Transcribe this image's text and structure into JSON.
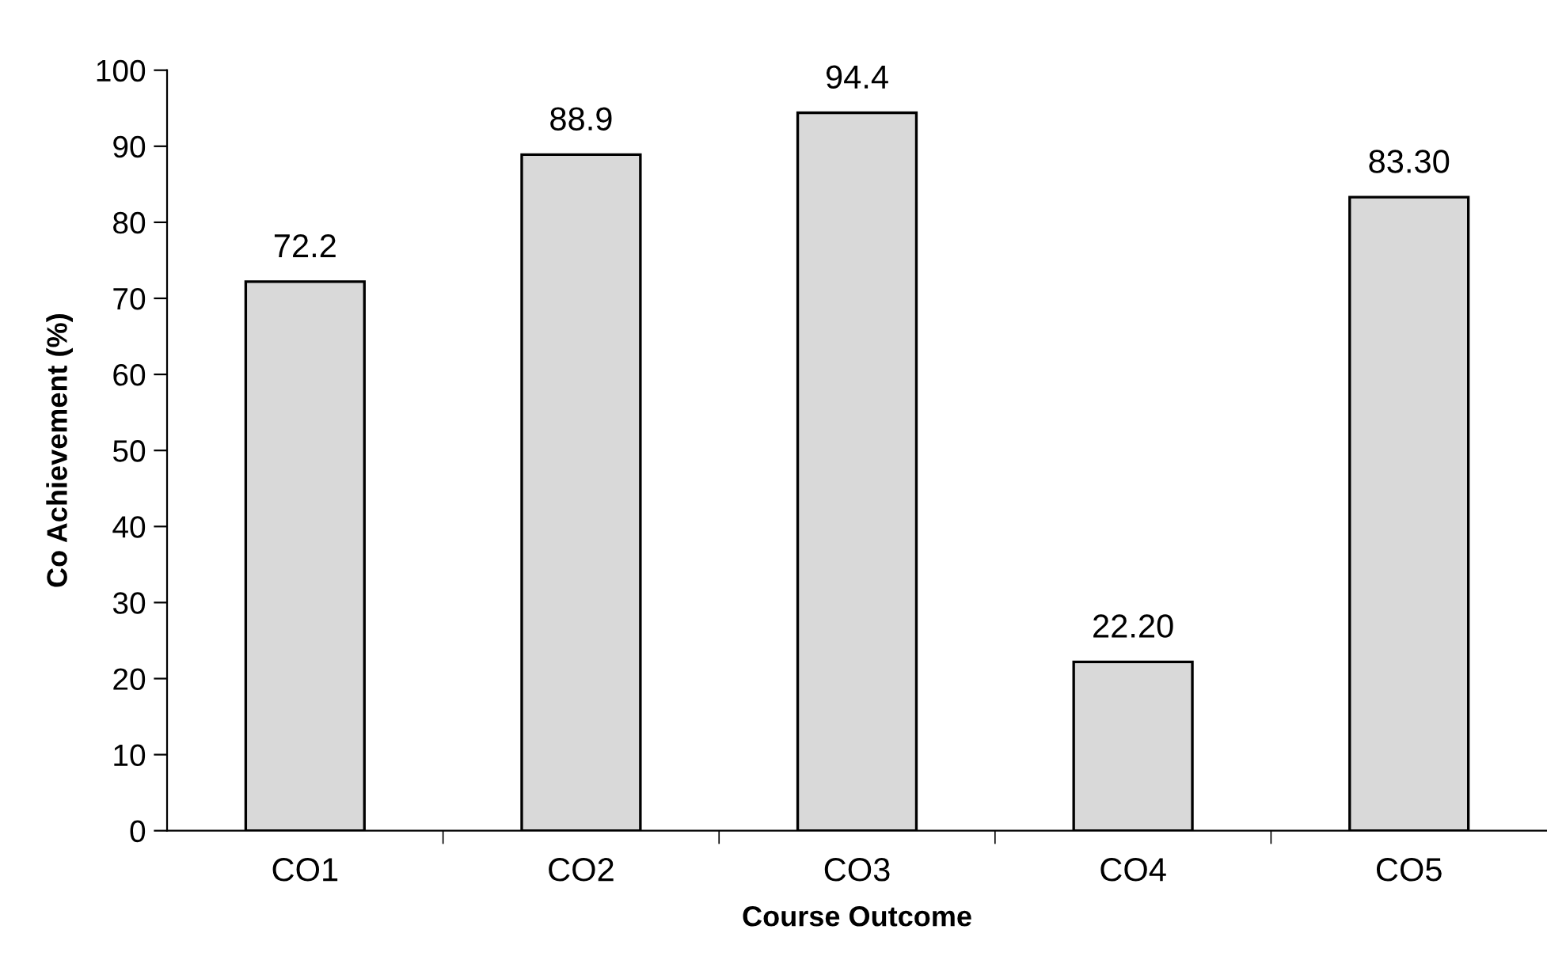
{
  "chart_data": {
    "type": "bar",
    "xlabel": "Course Outcome",
    "ylabel": "Co Achievement (%)",
    "categories": [
      "CO1",
      "CO2",
      "CO3",
      "CO4",
      "CO5"
    ],
    "values": [
      72.2,
      88.9,
      94.4,
      22.2,
      83.3
    ],
    "value_labels": [
      "72.2",
      "88.9",
      "94.4",
      "22.20",
      "83.30"
    ],
    "color": "#d9d9d9",
    "ylim": [
      0,
      100
    ],
    "yticks": [
      0,
      10,
      20,
      30,
      40,
      50,
      60,
      70,
      80,
      90,
      100
    ],
    "grid": false,
    "legend": false
  }
}
